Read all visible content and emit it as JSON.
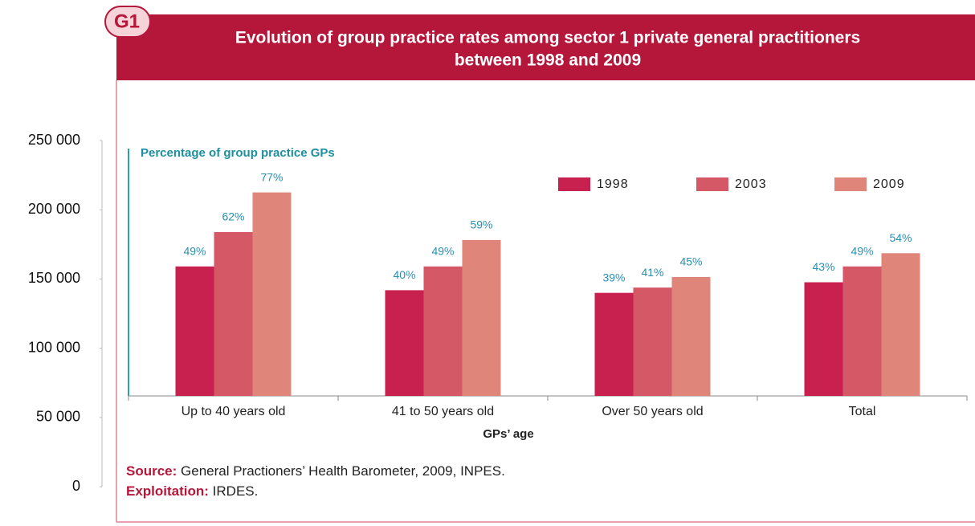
{
  "badge": "G1",
  "chart_data": {
    "type": "bar",
    "title": [
      "Evolution of group practice rates among sector 1 private general practitioners",
      "between 1998 and 2009"
    ],
    "y_label": "Percentage of group practice GPs",
    "x_label": "GPs’ age",
    "categories": [
      "Up to 40 years old",
      "41 to 50 years old",
      "Over 50 years old",
      "Total"
    ],
    "series": [
      {
        "name": "1998",
        "color": "#c8204f",
        "values": [
          49,
          40,
          39,
          43
        ],
        "value_labels": [
          "49%",
          "40%",
          "39%",
          "43%"
        ]
      },
      {
        "name": "2003",
        "color": "#d45866",
        "values": [
          62,
          49,
          41,
          49
        ],
        "value_labels": [
          "62%",
          "49%",
          "41%",
          "49%"
        ]
      },
      {
        "name": "2009",
        "color": "#e0857a",
        "values": [
          77,
          59,
          45,
          54
        ],
        "value_labels": [
          "77%",
          "59%",
          "45%",
          "54%"
        ]
      }
    ],
    "ylim": [
      0,
      93.6
    ],
    "y2lim": [
      0,
      250000
    ],
    "y2ticks": [
      {
        "value": 0,
        "label": "0"
      },
      {
        "value": 50000,
        "label": "50 000"
      },
      {
        "value": 100000,
        "label": "100 000"
      },
      {
        "value": 150000,
        "label": "150 000"
      },
      {
        "value": 200000,
        "label": "200 000"
      },
      {
        "value": 250000,
        "label": "250 000"
      }
    ],
    "legend": "top-right"
  },
  "source": {
    "label": "Source:",
    "text": " General Practioners’ Health Barometer, 2009, INPES."
  },
  "exploitation": {
    "label": "Exploitation:",
    "text": " IRDES."
  }
}
